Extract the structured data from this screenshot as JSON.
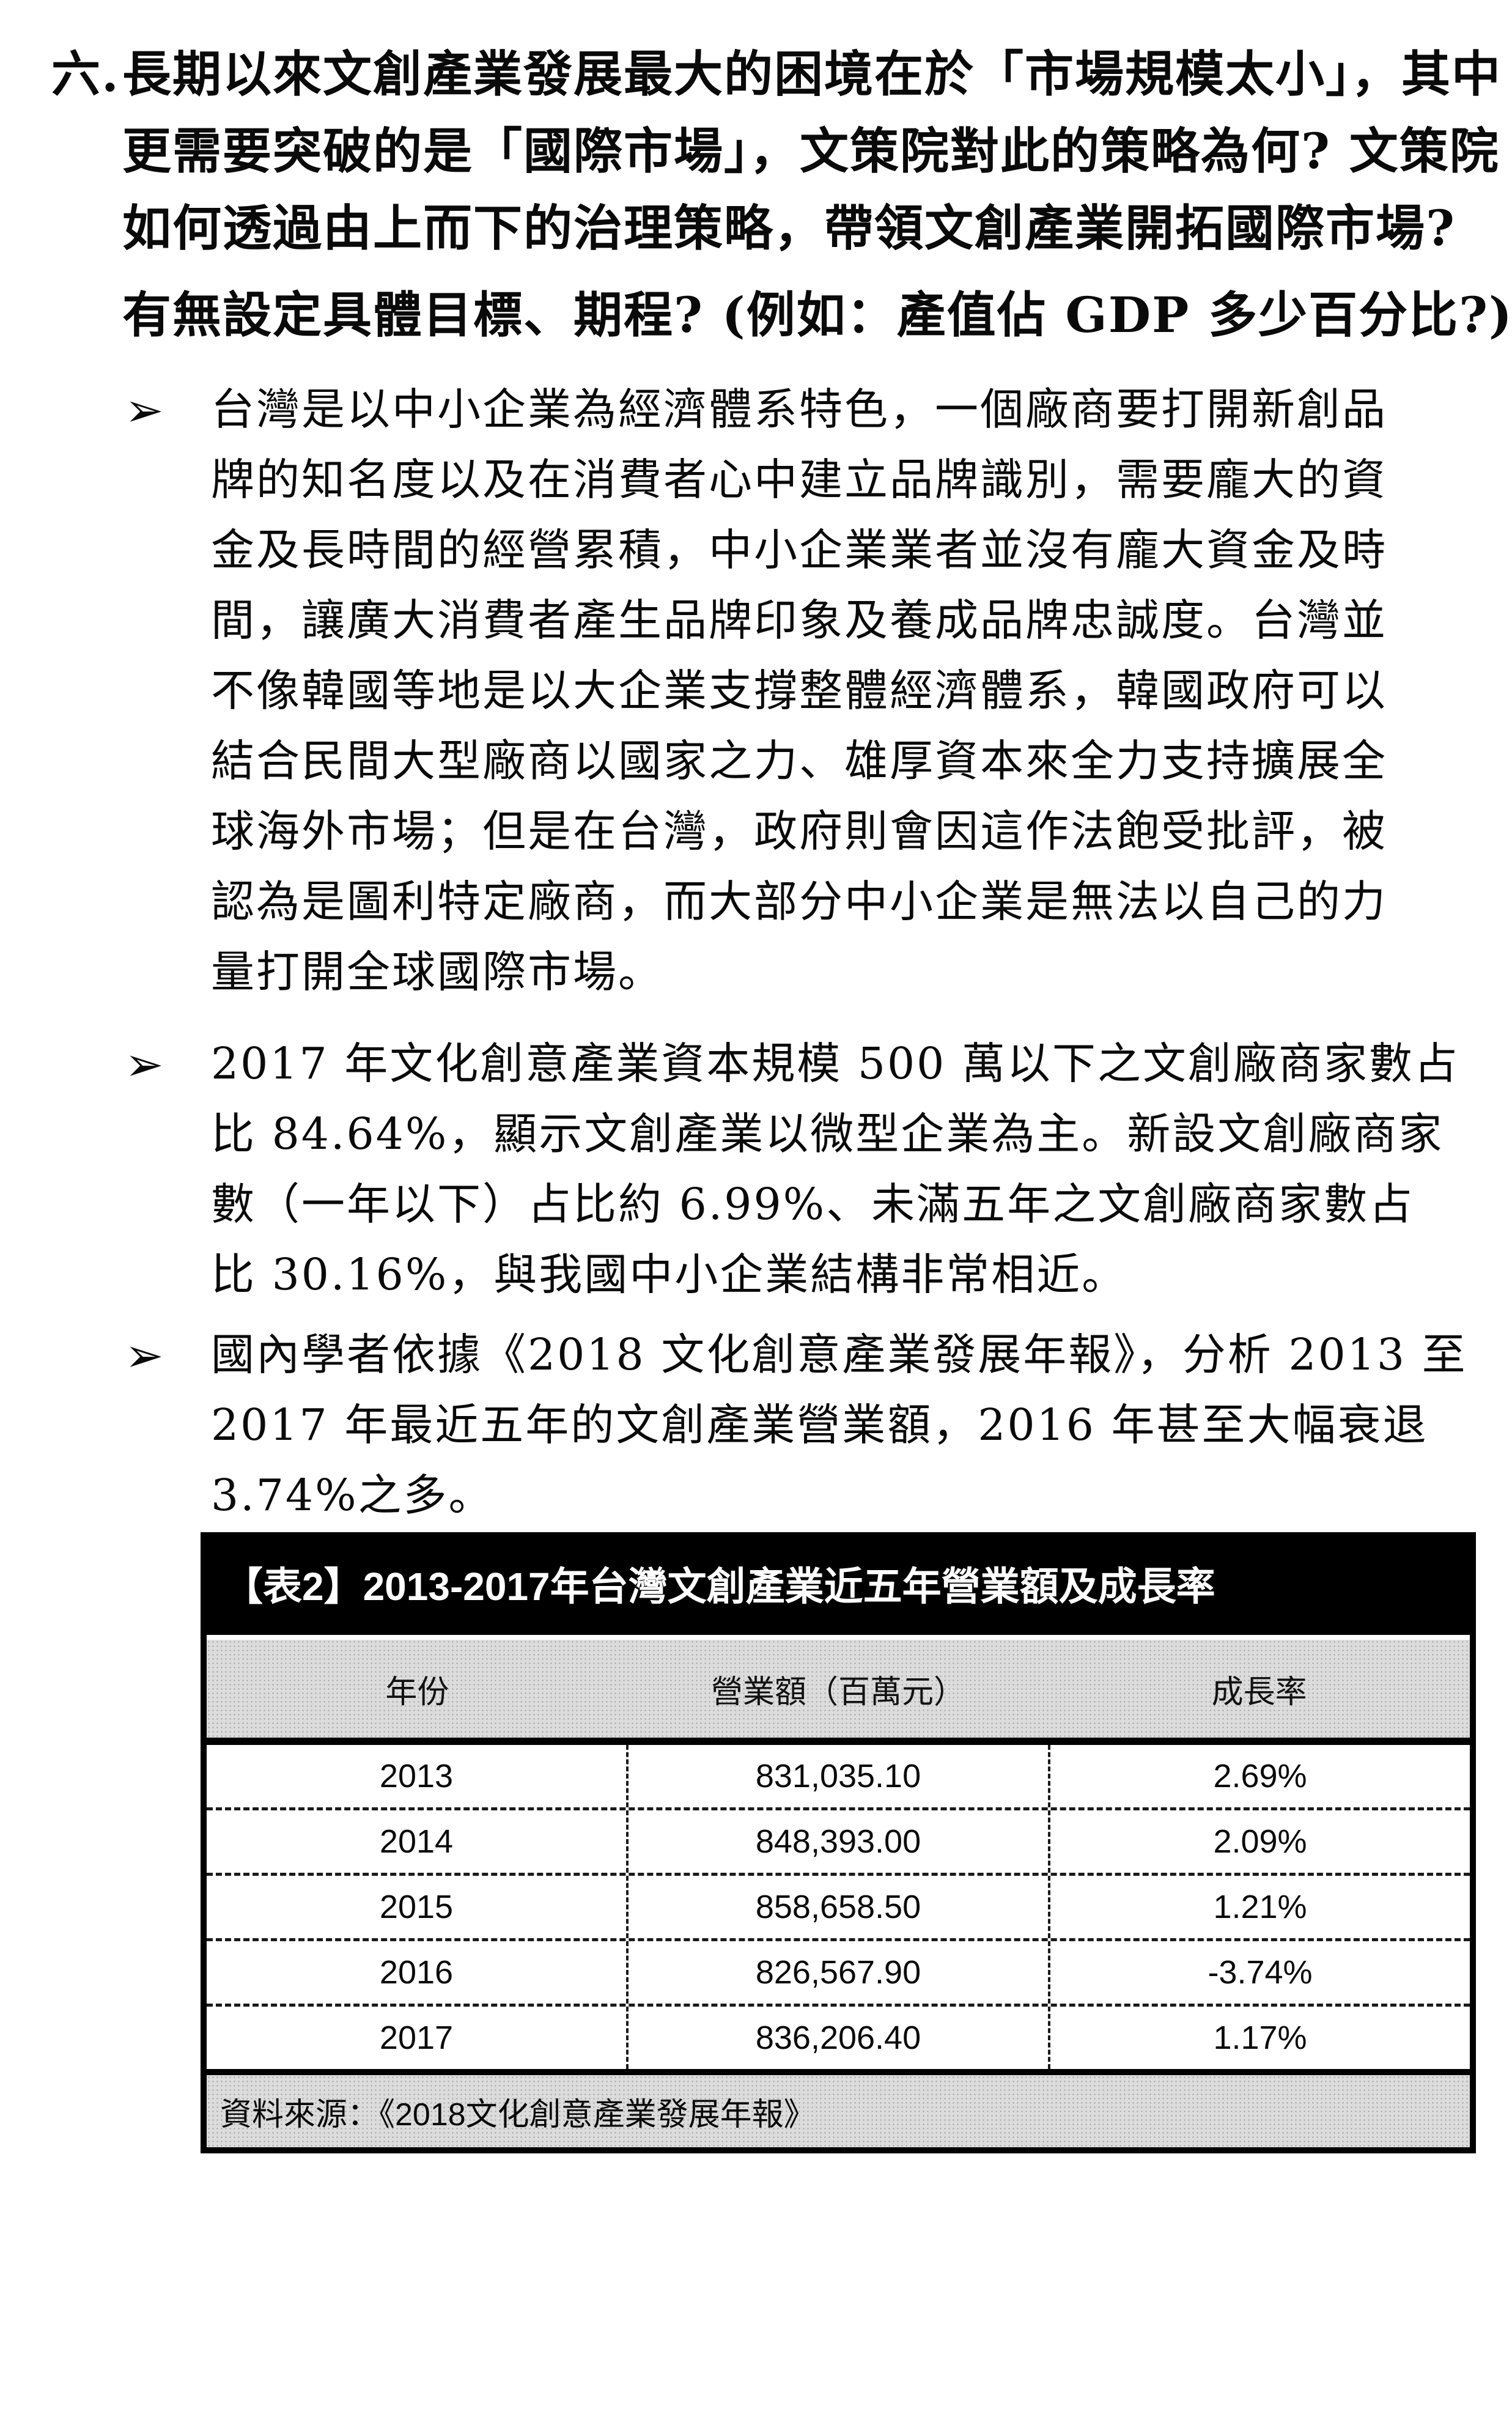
{
  "heading": {
    "number": "六.",
    "lines": [
      "長期以來文創產業發展最大的困境在於「市場規模太小」，其中",
      "更需要突破的是「國際市場」，文策院對此的策略為何? 文策院",
      "如何透過由上而下的治理策略，帶領文創產業開拓國際市場?"
    ],
    "sub_line": "有無設定具體目標、期程? (例如：產值佔 GDP 多少百分比?)"
  },
  "bullets": [
    {
      "marker": "➢",
      "lines": [
        "台灣是以中小企業為經濟體系特色，一個廠商要打開新創品",
        "牌的知名度以及在消費者心中建立品牌識別，需要龐大的資",
        "金及長時間的經營累積，中小企業業者並沒有龐大資金及時",
        "間，讓廣大消費者產生品牌印象及養成品牌忠誠度。台灣並",
        "不像韓國等地是以大企業支撐整體經濟體系，韓國政府可以",
        "結合民間大型廠商以國家之力、雄厚資本來全力支持擴展全",
        "球海外市場；但是在台灣，政府則會因這作法飽受批評，被",
        "認為是圖利特定廠商，而大部分中小企業是無法以自己的力",
        "量打開全球國際市場。"
      ]
    },
    {
      "marker": "➢",
      "lines": [
        "2017 年文化創意產業資本規模 500 萬以下之文創廠商家數占",
        "比 84.64%，顯示文創產業以微型企業為主。新設文創廠商家",
        "數（一年以下）占比約 6.99%、未滿五年之文創廠商家數占",
        "比 30.16%，與我國中小企業結構非常相近。"
      ]
    },
    {
      "marker": "➢",
      "lines": [
        "國內學者依據《2018 文化創意產業發展年報》，分析 2013 至",
        "2017 年最近五年的文創產業營業額，2016 年甚至大幅衰退",
        "3.74%之多。"
      ]
    }
  ],
  "table": {
    "title": "【表2】2013-2017年台灣文創產業近五年營業額及成長率",
    "columns": [
      "年份",
      "營業額（百萬元）",
      "成長率"
    ],
    "rows": [
      [
        "2013",
        "831,035.10",
        "2.69%"
      ],
      [
        "2014",
        "848,393.00",
        "2.09%"
      ],
      [
        "2015",
        "858,658.50",
        "1.21%"
      ],
      [
        "2016",
        "826,567.90",
        "-3.74%"
      ],
      [
        "2017",
        "836,206.40",
        "1.17%"
      ]
    ],
    "source": "資料來源：《2018文化創意產業發展年報》"
  },
  "colors": {
    "table_title_bg": "#000000",
    "table_title_fg": "#ffffff",
    "band_grey": "#dcdcdc",
    "text": "#0a0a0a"
  }
}
